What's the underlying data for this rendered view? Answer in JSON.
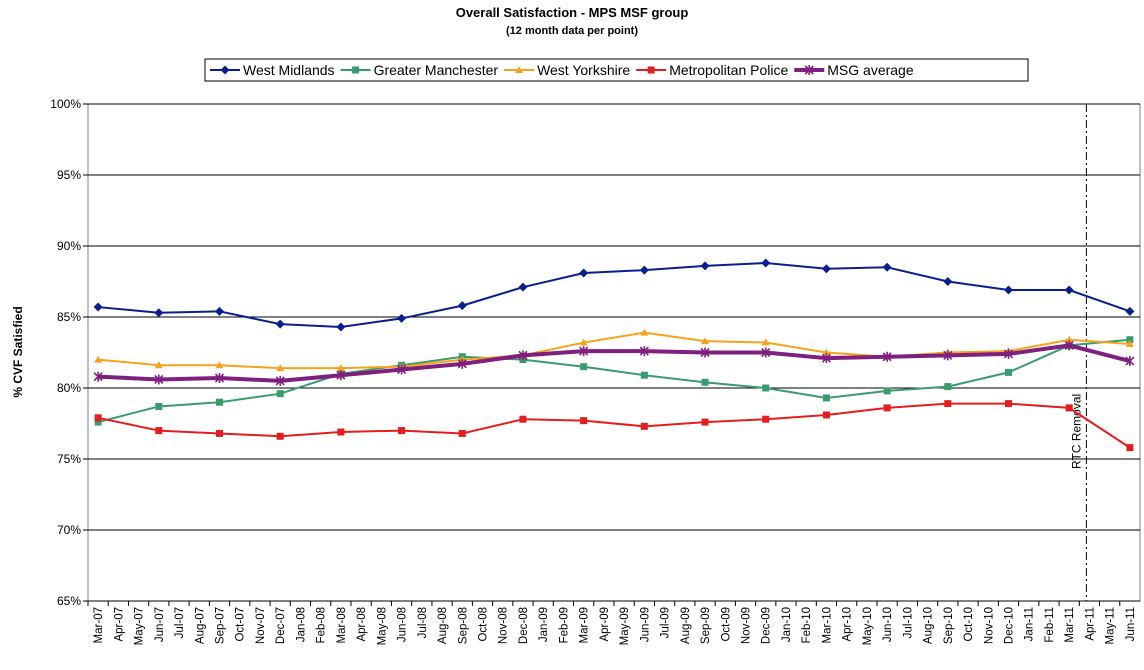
{
  "chart_data": {
    "type": "line",
    "title": "Overall Satisfaction - MPS MSF group",
    "subtitle": "(12 month data per point)",
    "y_label": "% CVF Satisfied",
    "annotation": "RTC Removal",
    "categories": [
      "Mar-07",
      "Apr-07",
      "May-07",
      "Jun-07",
      "Jul-07",
      "Aug-07",
      "Sep-07",
      "Oct-07",
      "Nov-07",
      "Dec-07",
      "Jan-08",
      "Feb-08",
      "Mar-08",
      "Apr-08",
      "May-08",
      "Jun-08",
      "Jul-08",
      "Aug-08",
      "Sep-08",
      "Oct-08",
      "Nov-08",
      "Dec-08",
      "Jan-09",
      "Feb-09",
      "Mar-09",
      "Apr-09",
      "May-09",
      "Jun-09",
      "Jul-09",
      "Aug-09",
      "Sep-09",
      "Oct-09",
      "Nov-09",
      "Dec-09",
      "Jan-10",
      "Feb-10",
      "Mar-10",
      "Apr-10",
      "May-10",
      "Jun-10",
      "Jul-10",
      "Aug-10",
      "Sep-10",
      "Oct-10",
      "Nov-10",
      "Dec-10",
      "Jan-11",
      "Feb-11",
      "Mar-11",
      "Apr-11",
      "May-11",
      "Jun-11"
    ],
    "x": [
      "Mar-07",
      "Jun-07",
      "Sep-07",
      "Dec-07",
      "Mar-08",
      "Jun-08",
      "Sep-08",
      "Dec-08",
      "Mar-09",
      "Jun-09",
      "Sep-09",
      "Dec-09",
      "Mar-10",
      "Jun-10",
      "Sep-10",
      "Dec-10",
      "Mar-11",
      "Jun-11"
    ],
    "series": [
      {
        "name": "West Midlands",
        "color": "#0a1f8f",
        "marker": "diamond",
        "values": [
          85.7,
          85.3,
          85.4,
          84.5,
          84.3,
          84.9,
          85.8,
          87.1,
          88.1,
          88.3,
          88.6,
          88.8,
          88.4,
          88.5,
          87.5,
          86.9,
          86.9,
          85.4
        ]
      },
      {
        "name": "Greater Manchester",
        "color": "#3a9b6e",
        "marker": "square",
        "values": [
          77.6,
          78.7,
          79.0,
          79.6,
          81.0,
          81.6,
          82.2,
          82.0,
          81.5,
          80.9,
          80.4,
          80.0,
          79.3,
          79.8,
          80.1,
          81.1,
          83.0,
          83.4
        ]
      },
      {
        "name": "West Yorkshire",
        "color": "#f7a21b",
        "marker": "triangle",
        "values": [
          82.0,
          81.6,
          81.6,
          81.4,
          81.4,
          81.5,
          82.0,
          82.3,
          83.2,
          83.9,
          83.3,
          83.2,
          82.5,
          82.2,
          82.5,
          82.6,
          83.4,
          83.1
        ]
      },
      {
        "name": "Metropolitan Police",
        "color": "#e41e1e",
        "marker": "square",
        "values": [
          77.9,
          77.0,
          76.8,
          76.6,
          76.9,
          77.0,
          76.8,
          77.8,
          77.7,
          77.3,
          77.6,
          77.8,
          78.1,
          78.6,
          78.9,
          78.9,
          78.6,
          75.8
        ]
      },
      {
        "name": "MSG average",
        "color": "#7f1f7f",
        "marker": "asterisk",
        "values": [
          80.8,
          80.6,
          80.7,
          80.5,
          80.9,
          81.3,
          81.7,
          82.3,
          82.6,
          82.6,
          82.5,
          82.5,
          82.1,
          82.2,
          82.3,
          82.4,
          83.0,
          81.9
        ]
      }
    ],
    "ylim": [
      65,
      100
    ],
    "yticks": [
      {
        "value": 65,
        "label": "65%"
      },
      {
        "value": 70,
        "label": "70%"
      },
      {
        "value": 75,
        "label": "75%"
      },
      {
        "value": 80,
        "label": "80%"
      },
      {
        "value": 85,
        "label": "85%"
      },
      {
        "value": 90,
        "label": "90%"
      },
      {
        "value": 95,
        "label": "95%"
      },
      {
        "value": 100,
        "label": "100%"
      }
    ],
    "grid": true,
    "legend": "top"
  }
}
